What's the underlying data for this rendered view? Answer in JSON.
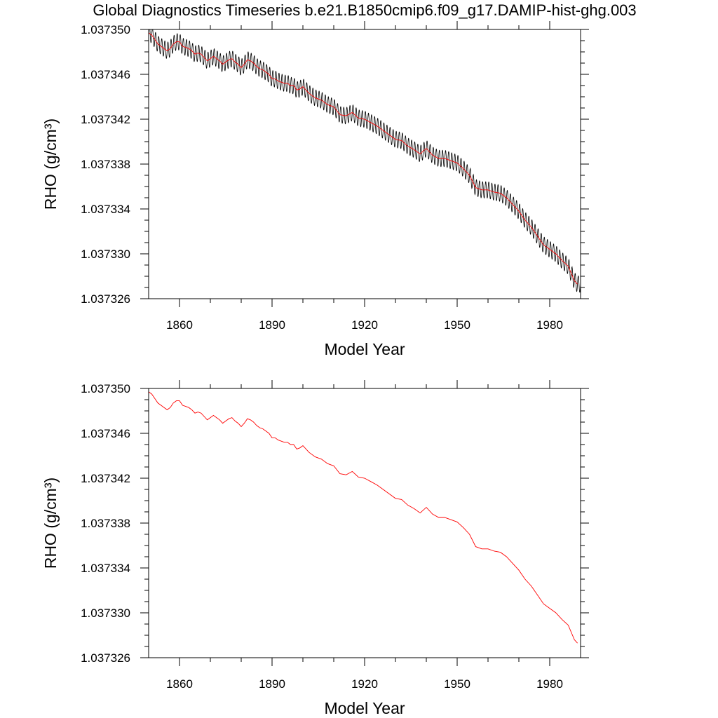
{
  "title": "Global Diagnostics Timeseries b.e21.B1850cmip6.f09_g17.DAMIP-hist-ghg.003",
  "colors": {
    "monthly": "#000000",
    "annual": "#ff0000",
    "axes": "#000000"
  },
  "chart_data": [
    {
      "type": "line",
      "xlabel": "Model Year",
      "ylabel": "RHO (g/cm³)",
      "xlim": [
        1850,
        1990
      ],
      "ylim": [
        1.037326,
        1.03735
      ],
      "xticks": [
        "1860",
        "1890",
        "1920",
        "1950",
        "1980"
      ],
      "yticks": [
        "1.037326",
        "1.037330",
        "1.037334",
        "1.037338",
        "1.037342",
        "1.037346",
        "1.037350"
      ],
      "anchors_x": [
        1850,
        1851,
        1852,
        1853,
        1854,
        1855,
        1856,
        1857,
        1858,
        1859,
        1860,
        1861,
        1862,
        1863,
        1864,
        1865,
        1866,
        1867,
        1868,
        1869,
        1870,
        1871,
        1872,
        1873,
        1874,
        1875,
        1876,
        1877,
        1878,
        1879,
        1880,
        1881,
        1882,
        1883,
        1884,
        1885,
        1886,
        1887,
        1888,
        1889,
        1890,
        1891,
        1892,
        1893,
        1894,
        1895,
        1896,
        1897,
        1898,
        1899,
        1900,
        1902,
        1904,
        1906,
        1908,
        1910,
        1912,
        1914,
        1916,
        1918,
        1920,
        1922,
        1924,
        1926,
        1928,
        1930,
        1932,
        1934,
        1936,
        1938,
        1940,
        1942,
        1944,
        1946,
        1948,
        1950,
        1952,
        1954,
        1956,
        1958,
        1960,
        1962,
        1964,
        1966,
        1968,
        1970,
        1972,
        1974,
        1976,
        1978,
        1980,
        1982,
        1984,
        1986,
        1988,
        1989
      ],
      "anchors_y": [
        1.0373497,
        1.0373495,
        1.0373491,
        1.0373487,
        1.0373485,
        1.0373483,
        1.0373481,
        1.0373483,
        1.0373487,
        1.0373489,
        1.0373489,
        1.0373485,
        1.0373484,
        1.0373483,
        1.0373481,
        1.0373478,
        1.0373479,
        1.0373478,
        1.0373475,
        1.0373472,
        1.0373474,
        1.0373476,
        1.0373474,
        1.0373472,
        1.0373469,
        1.0373471,
        1.0373473,
        1.0373474,
        1.0373471,
        1.0373469,
        1.0373466,
        1.0373469,
        1.0373473,
        1.0373472,
        1.037347,
        1.0373467,
        1.0373465,
        1.0373464,
        1.0373462,
        1.037346,
        1.0373456,
        1.0373456,
        1.0373454,
        1.0373453,
        1.0373452,
        1.0373452,
        1.037345,
        1.037345,
        1.0373446,
        1.0373447,
        1.0373449,
        1.0373443,
        1.0373439,
        1.0373437,
        1.0373433,
        1.0373431,
        1.0373424,
        1.0373423,
        1.0373426,
        1.0373421,
        1.037342,
        1.0373417,
        1.0373414,
        1.037341,
        1.0373406,
        1.0373402,
        1.0373401,
        1.0373396,
        1.0373393,
        1.0373389,
        1.0373394,
        1.0373388,
        1.0373385,
        1.0373385,
        1.0373383,
        1.0373381,
        1.0373376,
        1.037337,
        1.0373359,
        1.0373357,
        1.0373357,
        1.0373355,
        1.0373354,
        1.037335,
        1.0373344,
        1.0373338,
        1.037333,
        1.0373324,
        1.0373316,
        1.0373308,
        1.0373304,
        1.03733,
        1.0373294,
        1.0373289,
        1.0373276,
        1.0373273
      ],
      "series": [
        {
          "kind": "monthly",
          "color": "#000000",
          "amplitude": 7.5e-07,
          "period_years": 1
        },
        {
          "kind": "annual",
          "color": "#ff0000"
        }
      ]
    },
    {
      "type": "line",
      "xlabel": "Model Year",
      "ylabel": "RHO (g/cm³)",
      "xlim": [
        1850,
        1990
      ],
      "ylim": [
        1.037326,
        1.03735
      ],
      "xticks": [
        "1860",
        "1890",
        "1920",
        "1950",
        "1980"
      ],
      "yticks": [
        "1.037326",
        "1.037330",
        "1.037334",
        "1.037338",
        "1.037342",
        "1.037346",
        "1.037350"
      ],
      "series": [
        {
          "kind": "annual",
          "color": "#ff0000",
          "same_as_panel": 0
        }
      ]
    }
  ]
}
